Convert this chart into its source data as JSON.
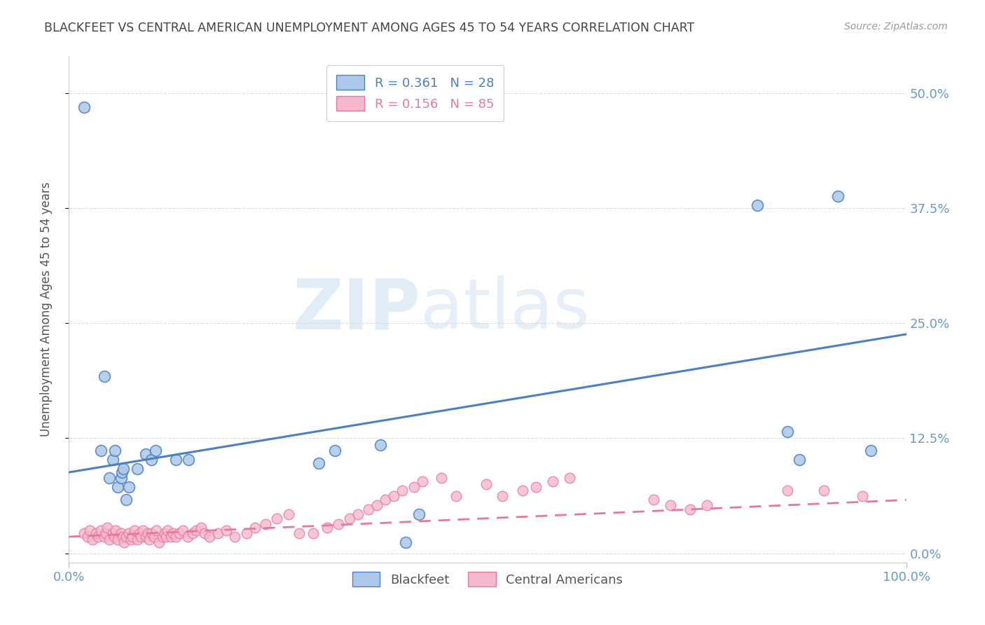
{
  "title": "BLACKFEET VS CENTRAL AMERICAN UNEMPLOYMENT AMONG AGES 45 TO 54 YEARS CORRELATION CHART",
  "source": "Source: ZipAtlas.com",
  "ylabel": "Unemployment Among Ages 45 to 54 years",
  "xlim": [
    0.0,
    1.0
  ],
  "ylim": [
    -0.01,
    0.54
  ],
  "yticks": [
    0.0,
    0.125,
    0.25,
    0.375,
    0.5
  ],
  "ytick_labels": [
    "0.0%",
    "12.5%",
    "25.0%",
    "37.5%",
    "50.0%"
  ],
  "xticks": [
    0.0,
    1.0
  ],
  "xtick_labels": [
    "0.0%",
    "100.0%"
  ],
  "blackfeet_R": "0.361",
  "blackfeet_N": "28",
  "central_R": "0.156",
  "central_N": "85",
  "blackfeet_color": "#adc8ea",
  "blackfeet_line_color": "#4a7fc1",
  "central_color": "#f5b8cc",
  "central_line_color": "#e8789a",
  "background_color": "#ffffff",
  "grid_color": "#dddddd",
  "title_color": "#444444",
  "axis_label_color": "#555555",
  "right_tick_color": "#6699cc",
  "bottom_tick_color": "#6699cc",
  "watermark_zip_color": "#c8ddf0",
  "watermark_atlas_color": "#d8e8f5",
  "blackfeet_x": [
    0.018,
    0.038,
    0.042,
    0.048,
    0.052,
    0.055,
    0.058,
    0.062,
    0.063,
    0.065,
    0.068,
    0.072,
    0.082,
    0.092,
    0.098,
    0.103,
    0.128,
    0.143,
    0.298,
    0.318,
    0.372,
    0.402,
    0.418,
    0.822,
    0.858,
    0.872,
    0.918,
    0.958
  ],
  "blackfeet_y": [
    0.485,
    0.112,
    0.192,
    0.082,
    0.102,
    0.112,
    0.072,
    0.082,
    0.088,
    0.092,
    0.058,
    0.072,
    0.092,
    0.108,
    0.102,
    0.112,
    0.102,
    0.102,
    0.098,
    0.112,
    0.118,
    0.012,
    0.042,
    0.378,
    0.132,
    0.102,
    0.388,
    0.112
  ],
  "central_x": [
    0.018,
    0.022,
    0.025,
    0.028,
    0.032,
    0.035,
    0.038,
    0.042,
    0.044,
    0.046,
    0.048,
    0.052,
    0.054,
    0.056,
    0.058,
    0.062,
    0.064,
    0.066,
    0.068,
    0.072,
    0.074,
    0.076,
    0.078,
    0.082,
    0.084,
    0.086,
    0.088,
    0.092,
    0.094,
    0.096,
    0.098,
    0.102,
    0.104,
    0.108,
    0.112,
    0.114,
    0.116,
    0.118,
    0.122,
    0.124,
    0.128,
    0.132,
    0.136,
    0.142,
    0.148,
    0.152,
    0.158,
    0.162,
    0.168,
    0.178,
    0.188,
    0.198,
    0.212,
    0.222,
    0.235,
    0.248,
    0.262,
    0.275,
    0.292,
    0.308,
    0.322,
    0.335,
    0.345,
    0.358,
    0.368,
    0.378,
    0.388,
    0.398,
    0.412,
    0.422,
    0.445,
    0.462,
    0.498,
    0.518,
    0.542,
    0.558,
    0.578,
    0.598,
    0.698,
    0.718,
    0.742,
    0.762,
    0.858,
    0.902,
    0.948
  ],
  "central_y": [
    0.022,
    0.018,
    0.025,
    0.015,
    0.022,
    0.018,
    0.025,
    0.018,
    0.022,
    0.028,
    0.015,
    0.022,
    0.018,
    0.025,
    0.015,
    0.022,
    0.018,
    0.012,
    0.018,
    0.022,
    0.015,
    0.018,
    0.025,
    0.015,
    0.022,
    0.018,
    0.025,
    0.018,
    0.022,
    0.015,
    0.022,
    0.018,
    0.025,
    0.012,
    0.018,
    0.022,
    0.018,
    0.025,
    0.018,
    0.022,
    0.018,
    0.022,
    0.025,
    0.018,
    0.022,
    0.025,
    0.028,
    0.022,
    0.018,
    0.022,
    0.025,
    0.018,
    0.022,
    0.028,
    0.032,
    0.038,
    0.042,
    0.022,
    0.022,
    0.028,
    0.032,
    0.038,
    0.042,
    0.048,
    0.052,
    0.058,
    0.062,
    0.068,
    0.072,
    0.078,
    0.082,
    0.062,
    0.075,
    0.062,
    0.068,
    0.072,
    0.078,
    0.082,
    0.058,
    0.052,
    0.048,
    0.052,
    0.068,
    0.068,
    0.062
  ],
  "blackfeet_trend_x": [
    0.0,
    1.0
  ],
  "blackfeet_trend_y": [
    0.088,
    0.238
  ],
  "central_trend_x": [
    0.0,
    1.0
  ],
  "central_trend_y": [
    0.018,
    0.058
  ]
}
